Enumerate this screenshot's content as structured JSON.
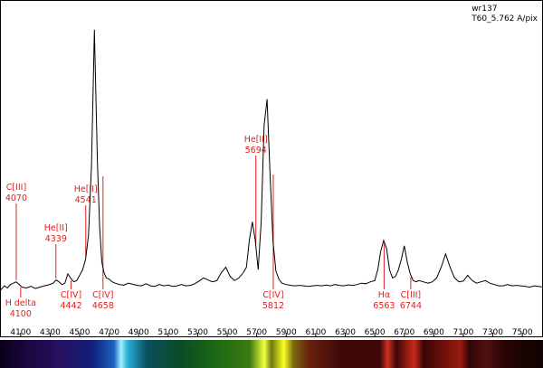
{
  "caption": {
    "object": "wr137",
    "instrument": "T60_5.762 A/pix"
  },
  "chart_data": {
    "type": "line",
    "title": "",
    "xlabel": "",
    "ylabel": "",
    "xlim": [
      3960,
      7640
    ],
    "ylim": [
      0,
      1
    ],
    "x_ticks": [
      4100,
      4300,
      4500,
      4700,
      4900,
      5100,
      5300,
      5500,
      5700,
      5900,
      6100,
      6300,
      6500,
      6700,
      6900,
      7100,
      7300,
      7500
    ],
    "x_tick_labels": [
      "4100",
      "4300",
      "4500",
      "4700",
      "4900",
      "5100",
      "5300",
      "5500",
      "5700",
      "5900",
      "6100",
      "6300",
      "6500",
      "6700",
      "6900",
      "7100",
      "7300",
      "7500"
    ],
    "series": [
      {
        "x": [
          3960,
          3990,
          4010,
          4030,
          4050,
          4070,
          4090,
          4110,
          4140,
          4170,
          4200,
          4230,
          4260,
          4290,
          4320,
          4340,
          4360,
          4380,
          4400,
          4420,
          4440,
          4460,
          4480,
          4500,
          4520,
          4540,
          4560,
          4580,
          4600,
          4620,
          4635,
          4650,
          4665,
          4680,
          4700,
          4720,
          4740,
          4770,
          4800,
          4830,
          4860,
          4890,
          4920,
          4950,
          4980,
          5010,
          5040,
          5070,
          5100,
          5130,
          5160,
          5190,
          5220,
          5250,
          5280,
          5310,
          5340,
          5370,
          5400,
          5430,
          5460,
          5490,
          5520,
          5550,
          5580,
          5610,
          5630,
          5650,
          5670,
          5690,
          5710,
          5730,
          5750,
          5770,
          5790,
          5810,
          5830,
          5850,
          5870,
          5900,
          5930,
          5960,
          5990,
          6020,
          6050,
          6080,
          6110,
          6140,
          6170,
          6200,
          6230,
          6260,
          6290,
          6320,
          6350,
          6380,
          6410,
          6440,
          6470,
          6500,
          6520,
          6540,
          6560,
          6580,
          6600,
          6620,
          6640,
          6660,
          6680,
          6700,
          6720,
          6740,
          6760,
          6780,
          6800,
          6830,
          6860,
          6890,
          6920,
          6950,
          6980,
          7010,
          7040,
          7070,
          7100,
          7130,
          7160,
          7190,
          7220,
          7250,
          7280,
          7310,
          7340,
          7370,
          7400,
          7430,
          7460,
          7490,
          7520,
          7550,
          7580,
          7610,
          7640
        ],
        "y": [
          0.012,
          0.03,
          0.022,
          0.035,
          0.04,
          0.045,
          0.035,
          0.025,
          0.022,
          0.028,
          0.02,
          0.025,
          0.03,
          0.034,
          0.04,
          0.052,
          0.045,
          0.035,
          0.04,
          0.075,
          0.058,
          0.045,
          0.05,
          0.07,
          0.09,
          0.13,
          0.22,
          0.48,
          0.99,
          0.5,
          0.25,
          0.12,
          0.08,
          0.06,
          0.055,
          0.045,
          0.04,
          0.035,
          0.033,
          0.04,
          0.036,
          0.032,
          0.03,
          0.038,
          0.03,
          0.028,
          0.035,
          0.03,
          0.033,
          0.028,
          0.03,
          0.035,
          0.03,
          0.032,
          0.038,
          0.048,
          0.06,
          0.052,
          0.045,
          0.05,
          0.08,
          0.1,
          0.065,
          0.05,
          0.06,
          0.08,
          0.1,
          0.2,
          0.27,
          0.2,
          0.09,
          0.27,
          0.63,
          0.73,
          0.45,
          0.2,
          0.085,
          0.055,
          0.04,
          0.035,
          0.032,
          0.03,
          0.032,
          0.03,
          0.028,
          0.03,
          0.032,
          0.03,
          0.033,
          0.03,
          0.035,
          0.032,
          0.03,
          0.034,
          0.032,
          0.035,
          0.04,
          0.038,
          0.045,
          0.05,
          0.09,
          0.16,
          0.2,
          0.17,
          0.09,
          0.06,
          0.065,
          0.09,
          0.13,
          0.18,
          0.12,
          0.075,
          0.05,
          0.045,
          0.05,
          0.045,
          0.04,
          0.045,
          0.06,
          0.1,
          0.15,
          0.1,
          0.06,
          0.045,
          0.048,
          0.07,
          0.05,
          0.04,
          0.045,
          0.05,
          0.04,
          0.035,
          0.03,
          0.03,
          0.035,
          0.03,
          0.032,
          0.03,
          0.028,
          0.025,
          0.03,
          0.028,
          0.025
        ]
      }
    ],
    "annotations": [
      {
        "label": "C[III]",
        "value": "4070",
        "position": "above"
      },
      {
        "label": "H delta",
        "value": "4100",
        "position": "below"
      },
      {
        "label": "He[II]",
        "value": "4339",
        "position": "above"
      },
      {
        "label": "C[IV]",
        "value": "4442",
        "position": "below"
      },
      {
        "label": "He[II]",
        "value": "4541",
        "position": "above"
      },
      {
        "label": "C[IV]",
        "value": "4658",
        "position": "below"
      },
      {
        "label": "He[II]",
        "value": "5694",
        "position": "above"
      },
      {
        "label": "C[IV]",
        "value": "5812",
        "position": "below"
      },
      {
        "label": "Hα",
        "value": "6563",
        "position": "below"
      },
      {
        "label": "C[III]",
        "value": "6744",
        "position": "below"
      }
    ],
    "annotation_color": "#e02020",
    "line_color": "#000000",
    "grid": false,
    "spectrum_strip": true
  }
}
